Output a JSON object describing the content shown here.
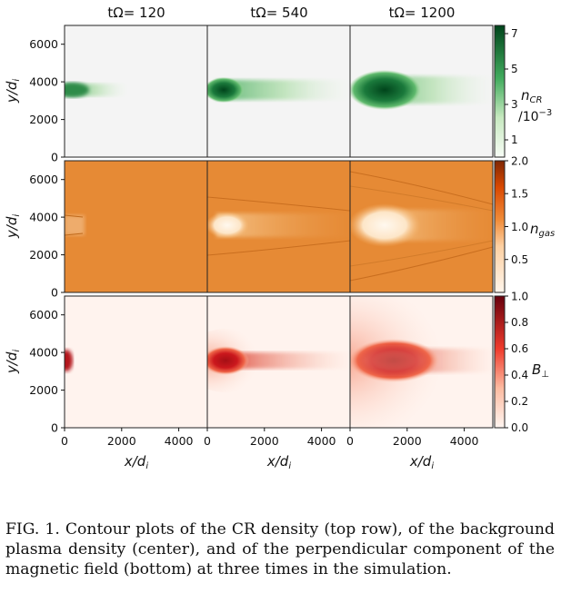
{
  "figure": {
    "column_titles": [
      "tΩ= 120",
      "tΩ= 540",
      "tΩ= 1200"
    ],
    "row_ylabel": "y/d",
    "ylabel_sub": "i",
    "col_xlabel": "x/d",
    "xlabel_sub": "i",
    "x_ticks": [
      "0",
      "2000",
      "4000"
    ],
    "y_ticks": [
      "0",
      "2000",
      "4000",
      "6000"
    ],
    "rows": [
      {
        "quantity": "n",
        "quantity_sub": "CR",
        "quantity_extra": "/10",
        "quantity_exp": "−3",
        "colorbar_ticks": [
          "1",
          "3",
          "5",
          "7"
        ],
        "colorbar_range": [
          0,
          7.5
        ],
        "colors": {
          "bg": "#f5f5f5",
          "low": "#c7e9c0",
          "mid": "#41ab5d",
          "high": "#00441b"
        }
      },
      {
        "quantity": "n",
        "quantity_sub": "gas",
        "colorbar_ticks": [
          "0.5",
          "1.0",
          "1.5",
          "2.0"
        ],
        "colorbar_range": [
          0,
          2.0
        ],
        "colors": {
          "bg": "#e68a35",
          "low": "#fff5eb",
          "mid": "#fdae6b",
          "high": "#7f2704"
        }
      },
      {
        "quantity": "B",
        "quantity_sub": "⊥",
        "colorbar_ticks": [
          "0.0",
          "0.2",
          "0.4",
          "0.6",
          "0.8",
          "1.0"
        ],
        "colorbar_range": [
          0,
          1.0
        ],
        "colors": {
          "bg": "#fff3ee",
          "low": "#fcbba1",
          "mid": "#ef3b2c",
          "high": "#67000d"
        }
      }
    ]
  },
  "chart_data": {
    "type": "heatmap",
    "panels": "3x3 grid of contour plots",
    "times": [
      120,
      540,
      1200
    ],
    "quantities": [
      "n_CR (/10^-3)",
      "n_gas",
      "B_perp"
    ],
    "x_range": [
      0,
      5000
    ],
    "y_range": [
      0,
      7000
    ],
    "xlabel": "x/d_i",
    "ylabel": "y/d_i"
  },
  "caption": "FIG. 1.  Contour plots of the CR density (top row), of the background plasma density (center), and of the perpendicular component of the magnetic field (bottom) at three times in the simulation."
}
